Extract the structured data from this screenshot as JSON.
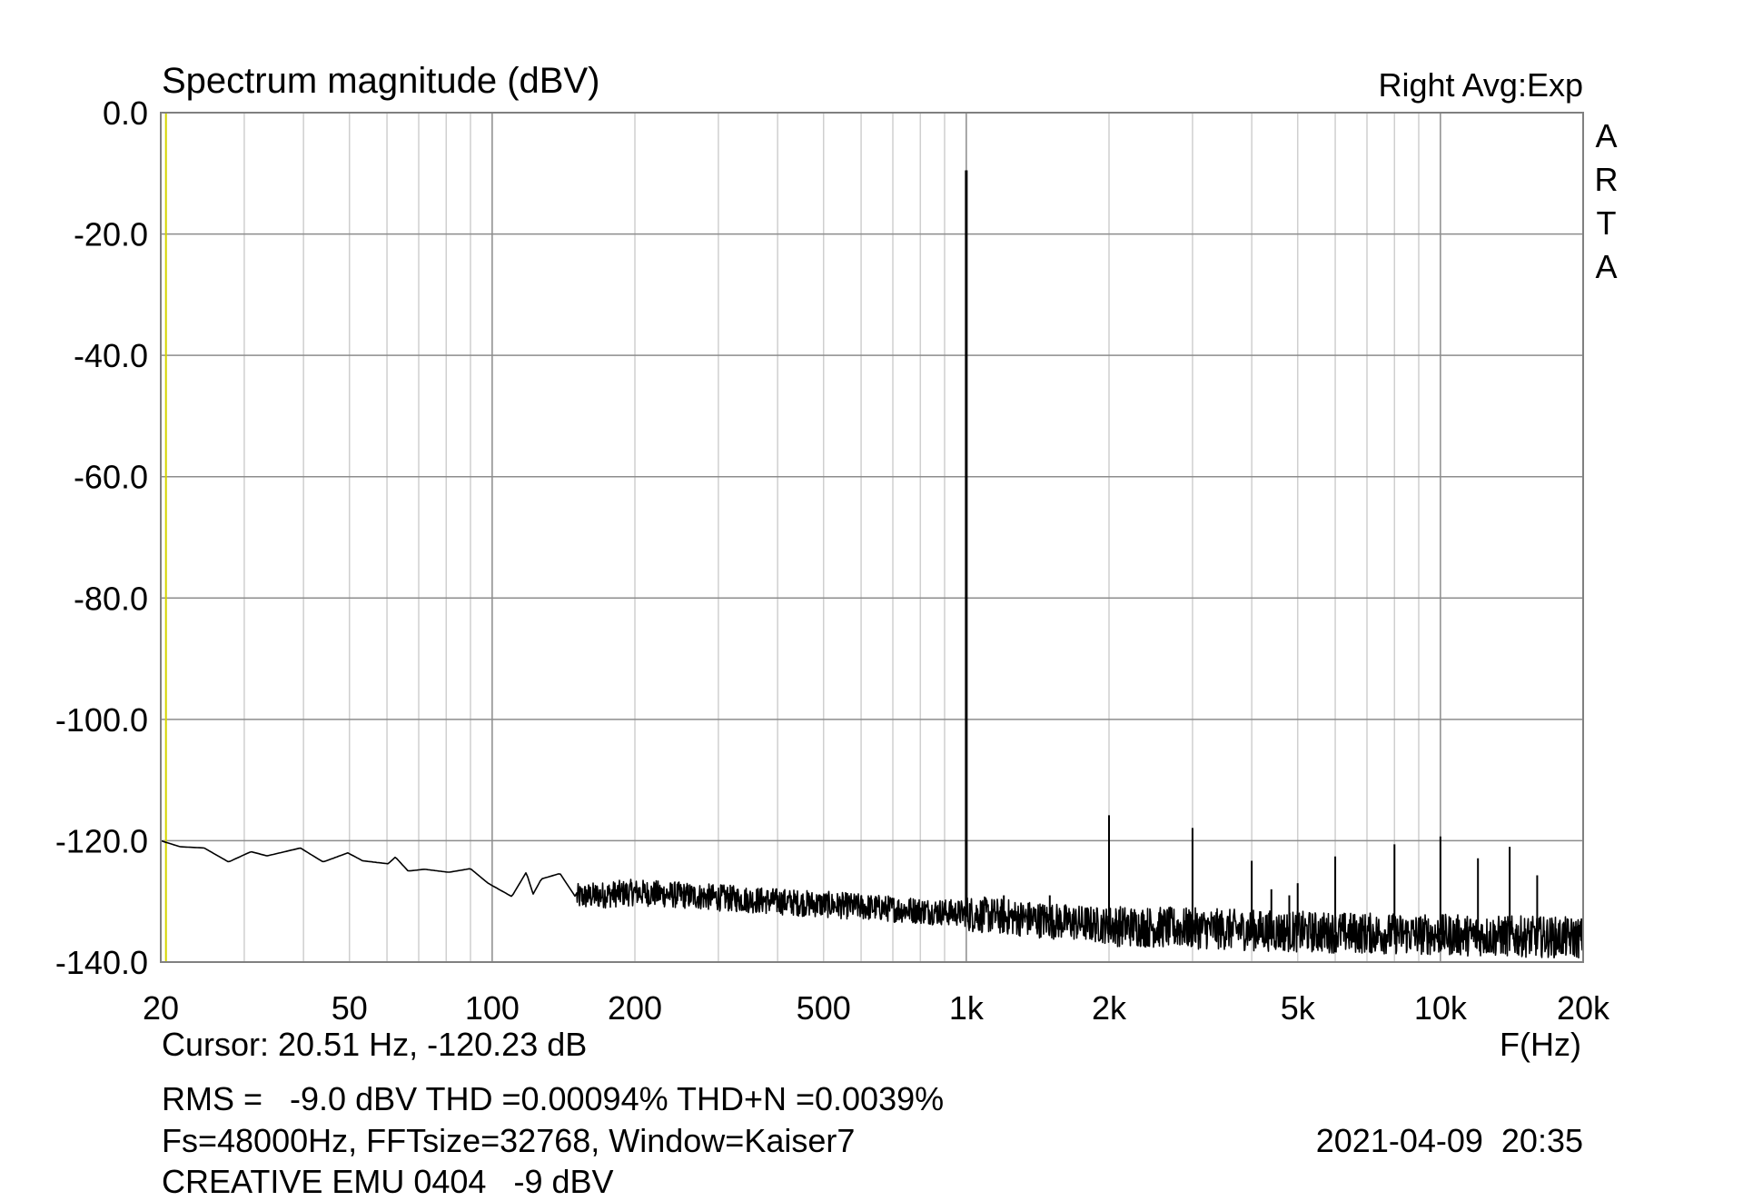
{
  "chart_data": {
    "type": "line",
    "title": "Spectrum magnitude (dBV)",
    "channel_info": "Right Avg:Exp",
    "brand": "ARTA",
    "xlabel": "F(Hz)",
    "ylabel": "Spectrum magnitude (dBV)",
    "xscale": "log",
    "xlim": [
      20,
      20000
    ],
    "ylim": [
      -140,
      0
    ],
    "grid": true,
    "x_ticks": [
      {
        "value": 20,
        "label": "20"
      },
      {
        "value": 50,
        "label": "50"
      },
      {
        "value": 100,
        "label": "100"
      },
      {
        "value": 200,
        "label": "200"
      },
      {
        "value": 500,
        "label": "500"
      },
      {
        "value": 1000,
        "label": "1k"
      },
      {
        "value": 2000,
        "label": "2k"
      },
      {
        "value": 5000,
        "label": "5k"
      },
      {
        "value": 10000,
        "label": "10k"
      },
      {
        "value": 20000,
        "label": "20k"
      }
    ],
    "y_ticks": [
      {
        "value": 0,
        "label": "0.0"
      },
      {
        "value": -20,
        "label": "-20.0"
      },
      {
        "value": -40,
        "label": "-40.0"
      },
      {
        "value": -60,
        "label": "-60.0"
      },
      {
        "value": -80,
        "label": "-80.0"
      },
      {
        "value": -100,
        "label": "-100.0"
      },
      {
        "value": -120,
        "label": "-120.0"
      },
      {
        "value": -140,
        "label": "-140.0"
      }
    ],
    "series": [
      {
        "name": "Spectrum",
        "color": "#000000",
        "noise_floor": [
          [
            20,
            -120
          ],
          [
            22,
            -121
          ],
          [
            24.7,
            -121.2
          ],
          [
            27.8,
            -123.5
          ],
          [
            31,
            -121.8
          ],
          [
            33.5,
            -122.5
          ],
          [
            39.4,
            -121.2
          ],
          [
            44,
            -123.5
          ],
          [
            49.6,
            -122
          ],
          [
            53.3,
            -123.3
          ],
          [
            60.3,
            -123.8
          ],
          [
            62.5,
            -122.7
          ],
          [
            66.5,
            -125
          ],
          [
            72,
            -124.7
          ],
          [
            81,
            -125.2
          ],
          [
            90,
            -124.6
          ],
          [
            98,
            -127
          ],
          [
            110,
            -129.2
          ],
          [
            118,
            -125.2
          ],
          [
            122,
            -128.8
          ],
          [
            127,
            -126.3
          ],
          [
            139,
            -125.4
          ],
          [
            150,
            -129.3
          ],
          [
            200,
            -128.5
          ],
          [
            500,
            -130.5
          ],
          [
            1000,
            -132
          ],
          [
            2000,
            -134
          ],
          [
            5000,
            -135
          ],
          [
            10000,
            -135.5
          ],
          [
            20000,
            -136
          ]
        ],
        "peaks": [
          [
            1000,
            -9.5
          ],
          [
            1200,
            -129
          ],
          [
            1500,
            -129
          ],
          [
            1800,
            -131
          ],
          [
            2000,
            -115.8
          ],
          [
            2200,
            -133
          ],
          [
            3000,
            -117.9
          ],
          [
            4000,
            -123.3
          ],
          [
            4400,
            -128
          ],
          [
            4800,
            -129
          ],
          [
            5000,
            -127
          ],
          [
            6000,
            -122.6
          ],
          [
            8000,
            -120.6
          ],
          [
            10000,
            -119.3
          ],
          [
            12000,
            -122.9
          ],
          [
            14000,
            -121
          ],
          [
            16000,
            -125.7
          ]
        ]
      }
    ],
    "cursor": {
      "freq": 20.51,
      "level": -120.23,
      "color": "#d4d400"
    }
  },
  "readouts": {
    "cursor": "Cursor: 20.51 Hz, -120.23 dB",
    "measurements": "RMS =   -9.0 dBV THD =0.00094% THD+N =0.0039%",
    "measurement_color": "#cc0000",
    "settings": "Fs=48000Hz, FFTsize=32768, Window=Kaiser7",
    "datetime": "2021-04-09  20:35",
    "device": "CREATIVE EMU 0404   -9 dBV"
  }
}
